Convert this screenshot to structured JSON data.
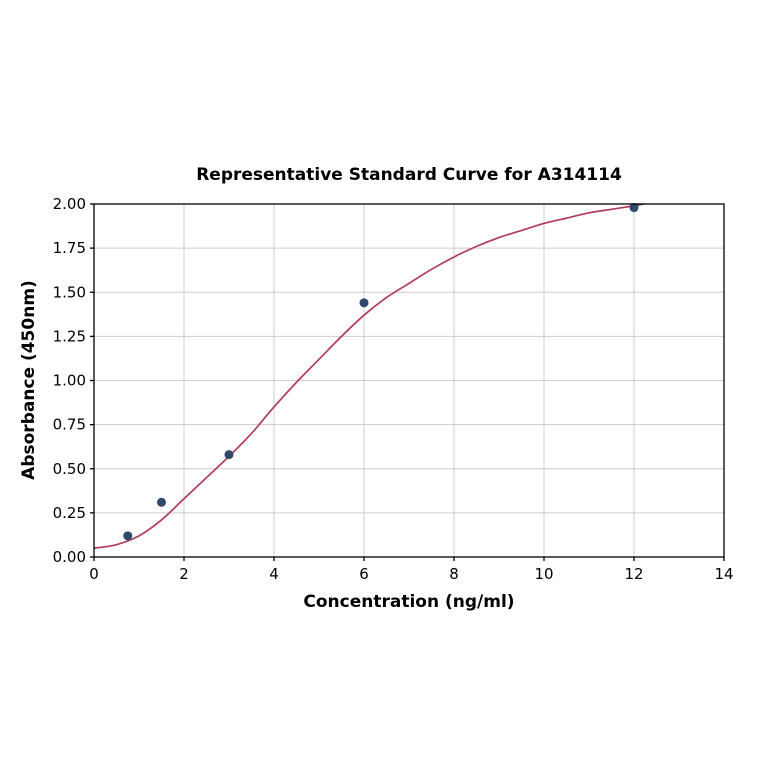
{
  "figure": {
    "background": "#ffffff"
  },
  "chart_data": {
    "type": "scatter",
    "title": "Representative Standard Curve for A314114",
    "xlabel": "Concentration (ng/ml)",
    "ylabel": "Absorbance (450nm)",
    "xlim": [
      0,
      14
    ],
    "ylim": [
      0,
      2.0
    ],
    "grid": true,
    "legend_position": "none",
    "colors": {
      "grid": "#cccccc",
      "axis": "#000000",
      "text": "#000000",
      "curve": "#b13a5d",
      "points": "#2e4a6b"
    },
    "xticks": {
      "values": [
        0,
        2,
        4,
        6,
        8,
        10,
        12,
        14
      ],
      "labels": [
        "0",
        "2",
        "4",
        "6",
        "8",
        "10",
        "12",
        "14"
      ]
    },
    "yticks": {
      "values": [
        0,
        0.25,
        0.5,
        0.75,
        1.0,
        1.25,
        1.5,
        1.75,
        2.0
      ],
      "labels": [
        "0.00",
        "0.25",
        "0.50",
        "0.75",
        "1.00",
        "1.25",
        "1.50",
        "1.75",
        "2.00"
      ]
    },
    "series": [
      {
        "name": "standard-points",
        "type": "scatter",
        "color": "#2e4a6b",
        "marker_radius": 4.5,
        "x": [
          0.75,
          1.5,
          3,
          6,
          12
        ],
        "y": [
          0.12,
          0.31,
          0.58,
          1.44,
          1.98
        ]
      },
      {
        "name": "fitted-curve",
        "type": "line",
        "color": "#b13a5d",
        "width": 1.7,
        "x": [
          0,
          0.5,
          1,
          1.5,
          2,
          2.5,
          3,
          3.5,
          4,
          4.5,
          5,
          5.5,
          6,
          6.5,
          7,
          7.5,
          8,
          8.5,
          9,
          9.5,
          10,
          10.5,
          11,
          11.5,
          12,
          12.2
        ],
        "y": [
          0.05,
          0.07,
          0.12,
          0.21,
          0.33,
          0.45,
          0.57,
          0.7,
          0.85,
          0.99,
          1.12,
          1.25,
          1.37,
          1.47,
          1.55,
          1.63,
          1.7,
          1.76,
          1.81,
          1.85,
          1.89,
          1.92,
          1.95,
          1.97,
          1.99,
          2.0
        ]
      }
    ]
  }
}
